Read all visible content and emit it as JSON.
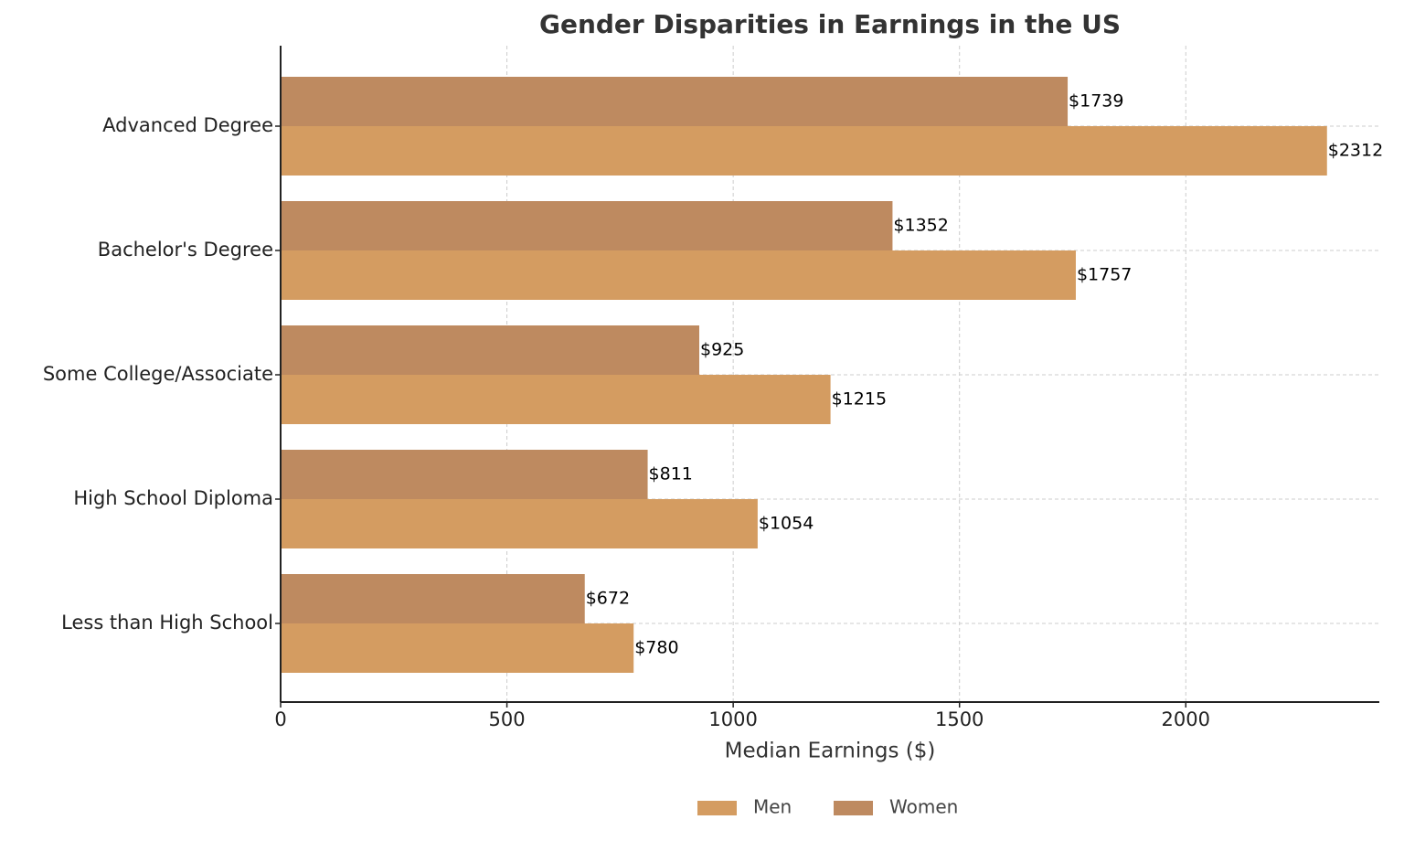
{
  "chart_data": {
    "type": "barh",
    "title": "Gender Disparities in Earnings in the US",
    "x_label": "Median Earnings ($)",
    "categories": [
      "Advanced Degree",
      "Bachelor's Degree",
      "Some College/Associate",
      "High School Diploma",
      "Less than High School"
    ],
    "series": [
      {
        "name": "Men",
        "color": "#d49c61",
        "values": [
          2312,
          1757,
          1215,
          1054,
          780
        ],
        "value_labels": [
          "$2312",
          "$1757",
          "$1215",
          "$1054",
          "$780"
        ]
      },
      {
        "name": "Women",
        "color": "#be8a60",
        "values": [
          1739,
          1352,
          925,
          811,
          672
        ],
        "value_labels": [
          "$1739",
          "$1352",
          "$925",
          "$811",
          "$672"
        ]
      }
    ],
    "xlim": [
      0,
      2427.6
    ],
    "xticks": [
      0,
      500,
      1000,
      1500,
      2000
    ],
    "grid": true,
    "legend": "bottom"
  }
}
